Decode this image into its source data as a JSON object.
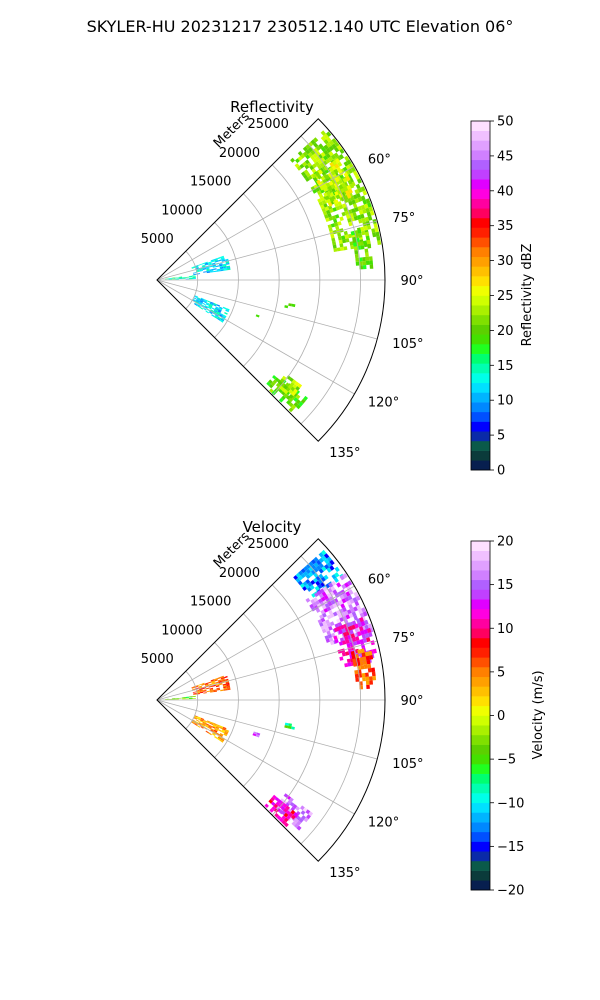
{
  "figure": {
    "suptitle": "SKYLER-HU  20231217  230512.140 UTC Elevation 06°"
  },
  "chart_data": [
    {
      "type": "heatmap",
      "title": "Reflectivity",
      "radial_label": "Meters",
      "radial_ticks": [
        5000,
        10000,
        15000,
        20000,
        25000
      ],
      "radial_tick_labels": [
        "5000",
        "10000",
        "15000",
        "20000",
        "25000"
      ],
      "rmax": 28000,
      "angle_range": [
        45,
        135
      ],
      "angle_ticks": [
        60,
        75,
        90,
        105,
        120,
        135
      ],
      "angle_tick_labels": [
        "60°",
        "75°",
        "90°",
        "105°",
        "120°",
        "135°"
      ],
      "grid": true,
      "colorbar": {
        "label": "Reflectivity dBZ",
        "min": 0,
        "max": 50,
        "ticks": [
          0,
          5,
          10,
          15,
          20,
          25,
          30,
          35,
          40,
          45,
          50
        ],
        "tick_labels": [
          "0",
          "5",
          "10",
          "15",
          "20",
          "25",
          "30",
          "35",
          "40",
          "45",
          "50"
        ],
        "colors": [
          "#071f4f",
          "#0b3b3b",
          "#0a5a4a",
          "#0a2aa8",
          "#0000ff",
          "#0050ff",
          "#0088ff",
          "#00b4ff",
          "#00e0ff",
          "#00ffe8",
          "#00ffb0",
          "#00ff70",
          "#20ff20",
          "#44e000",
          "#5cd000",
          "#80e000",
          "#aaf000",
          "#d0ff00",
          "#f0ff00",
          "#ffe000",
          "#ffc000",
          "#ffa000",
          "#ff8000",
          "#ff5000",
          "#ff2000",
          "#ff0000",
          "#ff0060",
          "#ff00a0",
          "#ff00e0",
          "#e000ff",
          "#c040ff",
          "#b060ff",
          "#d080ff",
          "#e0a0ff",
          "#f0c0ff",
          "#fde0ff"
        ]
      },
      "echo_regions": [
        {
          "az": [
            48,
            80
          ],
          "r": [
            22000,
            27500
          ],
          "value": 22
        },
        {
          "az": [
            56,
            66
          ],
          "r": [
            23000,
            26500
          ],
          "value": 24
        },
        {
          "az": [
            76,
            86
          ],
          "r": [
            24500,
            26500
          ],
          "value": 20
        },
        {
          "az": [
            82,
            88
          ],
          "r": [
            1000,
            4500
          ],
          "value": 14
        },
        {
          "az": [
            70,
            82
          ],
          "r": [
            4500,
            9000
          ],
          "value": 12
        },
        {
          "az": [
            112,
            122
          ],
          "r": [
            5000,
            9500
          ],
          "value": 12
        },
        {
          "az": [
            128,
            134
          ],
          "r": [
            18500,
            23500
          ],
          "value": 20
        },
        {
          "az": [
            126,
            131
          ],
          "r": [
            19500,
            22000
          ],
          "value": 23
        },
        {
          "az": [
            100,
            102
          ],
          "r": [
            16000,
            17000
          ],
          "value": 20
        },
        {
          "az": [
            108,
            110
          ],
          "r": [
            12500,
            13000
          ],
          "value": 20
        }
      ]
    },
    {
      "type": "heatmap",
      "title": "Velocity",
      "radial_label": "Meters",
      "radial_ticks": [
        5000,
        10000,
        15000,
        20000,
        25000
      ],
      "radial_tick_labels": [
        "5000",
        "10000",
        "15000",
        "20000",
        "25000"
      ],
      "rmax": 28000,
      "angle_range": [
        45,
        135
      ],
      "angle_ticks": [
        60,
        75,
        90,
        105,
        120,
        135
      ],
      "angle_tick_labels": [
        "60°",
        "75°",
        "90°",
        "105°",
        "120°",
        "135°"
      ],
      "grid": true,
      "colorbar": {
        "label": "Velocity (m/s)",
        "min": -20,
        "max": 20,
        "ticks": [
          -20,
          -15,
          -10,
          -5,
          0,
          5,
          10,
          15,
          20
        ],
        "tick_labels": [
          "−20",
          "−15",
          "−10",
          "−5",
          "0",
          "5",
          "10",
          "15",
          "20"
        ],
        "colors": [
          "#071f4f",
          "#0b3b3b",
          "#0a5a4a",
          "#0a2aa8",
          "#0000ff",
          "#0050ff",
          "#0088ff",
          "#00b4ff",
          "#00e0ff",
          "#00ffe8",
          "#00ffb0",
          "#00ff70",
          "#20ff20",
          "#44e000",
          "#5cd000",
          "#80e000",
          "#aaf000",
          "#d0ff00",
          "#f0ff00",
          "#ffe000",
          "#ffc000",
          "#ffa000",
          "#ff8000",
          "#ff5000",
          "#ff2000",
          "#ff0000",
          "#ff0060",
          "#ff00a0",
          "#ff00e0",
          "#e000ff",
          "#c040ff",
          "#b060ff",
          "#d080ff",
          "#e0a0ff",
          "#f0c0ff",
          "#fde0ff"
        ]
      },
      "echo_regions": [
        {
          "az": [
            48,
            56
          ],
          "r": [
            22500,
            27500
          ],
          "value": -12
        },
        {
          "az": [
            56,
            72
          ],
          "r": [
            22000,
            27500
          ],
          "value": 16
        },
        {
          "az": [
            68,
            80
          ],
          "r": [
            23000,
            27500
          ],
          "value": 12
        },
        {
          "az": [
            76,
            86
          ],
          "r": [
            24500,
            27000
          ],
          "value": 6
        },
        {
          "az": [
            84,
            88
          ],
          "r": [
            1000,
            4500
          ],
          "value": -4
        },
        {
          "az": [
            70,
            82
          ],
          "r": [
            4500,
            9000
          ],
          "value": 6
        },
        {
          "az": [
            112,
            122
          ],
          "r": [
            5000,
            9500
          ],
          "value": 4
        },
        {
          "az": [
            126,
            132
          ],
          "r": [
            19500,
            23500
          ],
          "value": 16
        },
        {
          "az": [
            129,
            134
          ],
          "r": [
            18500,
            22000
          ],
          "value": 11
        },
        {
          "az": [
            100,
            102
          ],
          "r": [
            16000,
            17000
          ],
          "value": -6
        },
        {
          "az": [
            108,
            110
          ],
          "r": [
            12500,
            13000
          ],
          "value": 14
        }
      ]
    }
  ]
}
